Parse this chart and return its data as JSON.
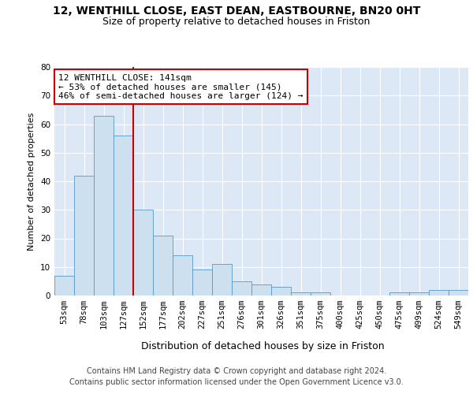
{
  "title": "12, WENTHILL CLOSE, EAST DEAN, EASTBOURNE, BN20 0HT",
  "subtitle": "Size of property relative to detached houses in Friston",
  "xlabel": "Distribution of detached houses by size in Friston",
  "ylabel": "Number of detached properties",
  "categories": [
    "53sqm",
    "78sqm",
    "103sqm",
    "127sqm",
    "152sqm",
    "177sqm",
    "202sqm",
    "227sqm",
    "251sqm",
    "276sqm",
    "301sqm",
    "326sqm",
    "351sqm",
    "375sqm",
    "400sqm",
    "425sqm",
    "450sqm",
    "475sqm",
    "499sqm",
    "524sqm",
    "549sqm"
  ],
  "values": [
    7,
    42,
    63,
    56,
    30,
    21,
    14,
    9,
    11,
    5,
    4,
    3,
    1,
    1,
    0,
    0,
    0,
    1,
    1,
    2,
    2
  ],
  "bar_color": "#cce0f0",
  "bar_edge_color": "#5599cc",
  "vline_x_index": 3.5,
  "vline_color": "#cc0000",
  "annotation_line1": "12 WENTHILL CLOSE: 141sqm",
  "annotation_line2": "← 53% of detached houses are smaller (145)",
  "annotation_line3": "46% of semi-detached houses are larger (124) →",
  "annotation_box_color": "#ffffff",
  "annotation_box_edge_color": "#cc0000",
  "ylim": [
    0,
    80
  ],
  "yticks": [
    0,
    10,
    20,
    30,
    40,
    50,
    60,
    70,
    80
  ],
  "bg_color": "#dce8f5",
  "footer_line1": "Contains HM Land Registry data © Crown copyright and database right 2024.",
  "footer_line2": "Contains public sector information licensed under the Open Government Licence v3.0.",
  "title_fontsize": 10,
  "subtitle_fontsize": 9,
  "xlabel_fontsize": 9,
  "ylabel_fontsize": 8,
  "tick_fontsize": 7.5,
  "annotation_fontsize": 8,
  "footer_fontsize": 7
}
